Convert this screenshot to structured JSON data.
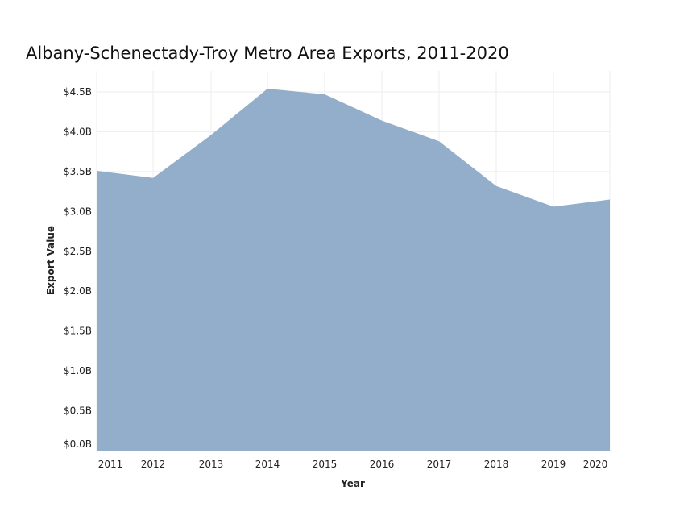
{
  "chart_data": {
    "type": "area",
    "title": "Albany-Schenectady-Troy Metro Area Exports, 2011-2020",
    "xlabel": "Year",
    "ylabel": "Export Value",
    "categories": [
      "2011",
      "2012",
      "2013",
      "2014",
      "2015",
      "2016",
      "2017",
      "2018",
      "2019",
      "2020"
    ],
    "series": [
      {
        "values": [
          3.51,
          3.42,
          3.96,
          4.54,
          4.47,
          4.14,
          3.88,
          3.32,
          3.06,
          3.15
        ]
      }
    ],
    "y_unit": "billion USD",
    "ylim": [
      0,
      4.5
    ],
    "yticks": [
      0,
      0.5,
      1.0,
      1.5,
      2.0,
      2.5,
      3.0,
      3.5,
      4.0,
      4.5
    ],
    "ytick_labels": [
      "$0.0B",
      "$0.5B",
      "$1.0B",
      "$1.5B",
      "$2.0B",
      "$2.5B",
      "$3.0B",
      "$3.5B",
      "$4.0B",
      "$4.5B"
    ],
    "grid": true,
    "fill_color": "#8fabc8"
  }
}
